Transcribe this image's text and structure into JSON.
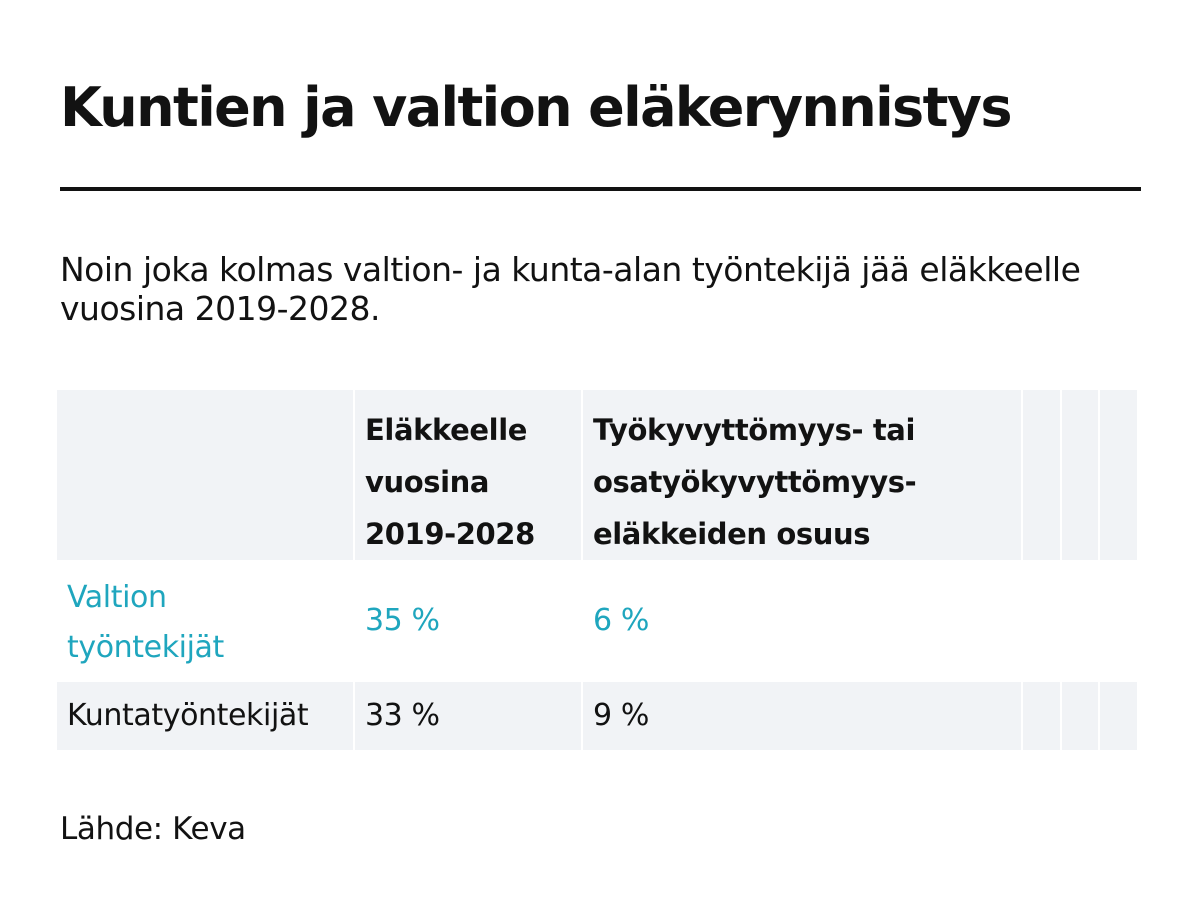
{
  "title": "Kuntien ja valtion eläkerynnistys",
  "subtitle": "Noin joka kolmas valtion- ja kunta-alan työntekijä jää eläkkeelle vuosina 2019-2028.",
  "source": "Lähde: Keva",
  "colors": {
    "accent": "#1fa6be",
    "text": "#121212",
    "shade": "#f1f3f6"
  },
  "chart_data": {
    "type": "table",
    "columns": [
      "",
      "Eläkkeelle vuosina 2019-2028",
      "Työkyvyttömyys- tai osatyökyvyttömyys-eläkkeiden osuus"
    ],
    "rows": [
      {
        "label": "Valtion työntekijät",
        "values": [
          "35 %",
          "6 %"
        ],
        "highlight": true
      },
      {
        "label": "Kuntatyöntekijät",
        "values": [
          "33 %",
          "9 %"
        ],
        "highlight": false
      }
    ]
  }
}
